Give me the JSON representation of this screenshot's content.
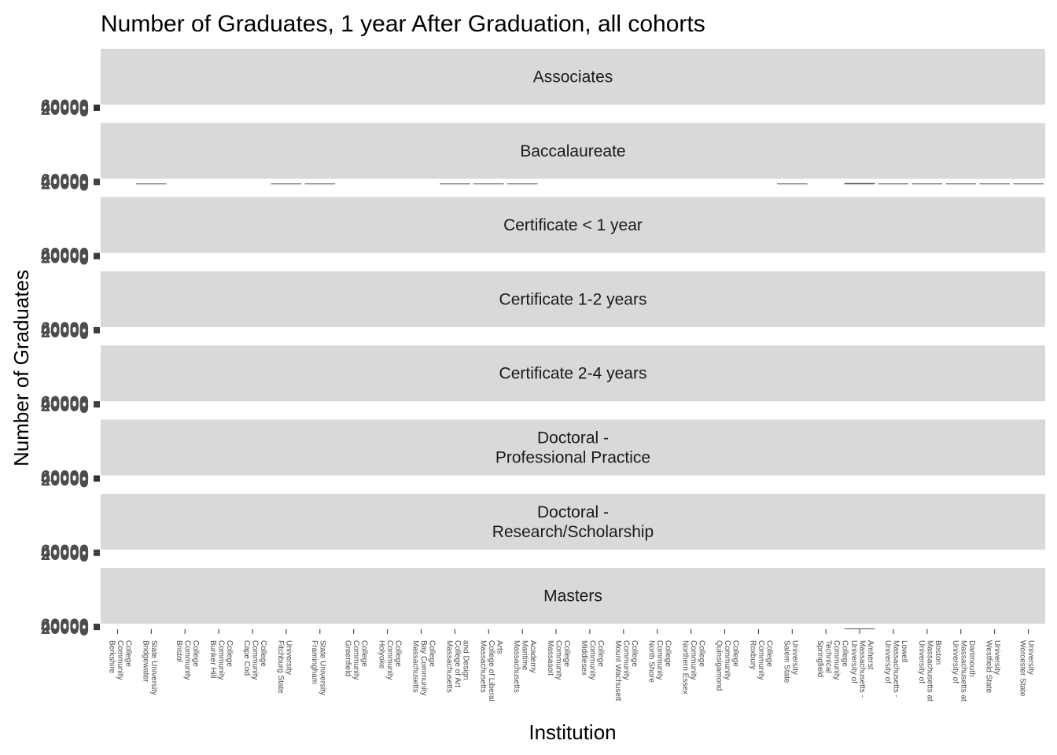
{
  "chart_data": {
    "type": "bar",
    "title": "Number of Graduates, 1 year After Graduation, all cohorts",
    "xlabel": "Institution",
    "ylabel": "Number of Graduates",
    "facet_labels": [
      "Associates",
      "Baccalaureate",
      "Certificate < 1 year",
      "Certificate 1-2 years",
      "Certificate 2-4 years",
      "Doctoral -\nProfessional Practice",
      "Doctoral -\nResearch/Scholarship",
      "Masters"
    ],
    "y_tick_labels": [
      "0",
      "20000",
      "40000",
      "60000"
    ],
    "ylim": [
      0,
      60000
    ],
    "categories": [
      "Berkshire Community College",
      "Bridgewater State University",
      "Bristol Community College",
      "Bunker Hill Community College",
      "Cape Cod Community College",
      "Fitchburg State University",
      "Framingham State University",
      "Greenfield Community College",
      "Holyoke Community College",
      "Massachusetts Bay Community College",
      "Massachusetts College of Art and Design",
      "Massachusetts College of Liberal Arts",
      "Massachusetts Maritime Academy",
      "Massasoit Community College",
      "Middlesex Community College",
      "Mount Wachusett Community College",
      "North Shore Community College",
      "Northern Essex Community College",
      "Quinsigamond Community College",
      "Roxbury Community College",
      "Salem State University",
      "Springfield Technical Community College",
      "University of Massachusetts - Amherst",
      "University of Massachusetts - Lowell",
      "University of Massachusetts at Boston",
      "University of Massachusetts at Dartmouth",
      "Westfield State University",
      "Worcester State University"
    ],
    "x_tick_labels": [
      "Berkshire\nCommunity\nCollege",
      "Bridgewater\nState University",
      "Bristol\nCommunity\nCollege",
      "Bunker Hill\nCommunity\nCollege",
      "Cape Cod\nCommunity\nCollege",
      "Fitchburg State\nUniversity",
      "Framingham\nState University",
      "Greenfield\nCommunity\nCollege",
      "Holyoke\nCommunity\nCollege",
      "Massachusetts\nBay Community\nCollege",
      "Massachusetts\nCollege of Art\nand Design",
      "Massachusetts\nCollege of Liberal\nArts",
      "Massachusetts\nMaritime\nAcademy",
      "Massasoit\nCommunity\nCollege",
      "Middlesex\nCommunity\nCollege",
      "Mount Wachusett\nCommunity\nCollege",
      "North Shore\nCommunity\nCollege",
      "Northern Essex\nCommunity\nCollege",
      "Quinsigamond\nCommunity\nCollege",
      "Roxbury\nCommunity\nCollege",
      "Salem State\nUniversity",
      "Springfield\nTechnical\nCommunity\nCollege",
      "University of\nMassachusetts -\nAmherst",
      "University of\nMassachusetts -\nLowell",
      "University of\nMassachusetts at\nBoston",
      "University of\nMassachusetts at\nDartmouth",
      "Westfield State\nUniversity",
      "Worcester State\nUniversity"
    ],
    "series": [
      {
        "facet": "Associates",
        "values": [
          0,
          0,
          0,
          0,
          0,
          0,
          0,
          0,
          0,
          0,
          0,
          0,
          0,
          0,
          0,
          0,
          0,
          0,
          0,
          0,
          0,
          0,
          0,
          0,
          0,
          0,
          0,
          0
        ]
      },
      {
        "facet": "Baccalaureate",
        "values": [
          0,
          4500,
          0,
          0,
          0,
          3000,
          3500,
          0,
          0,
          0,
          3000,
          3000,
          3000,
          0,
          0,
          0,
          0,
          0,
          0,
          0,
          4500,
          0,
          16000,
          6000,
          5000,
          5500,
          5000,
          3000
        ]
      },
      {
        "facet": "Certificate < 1 year",
        "values": [
          0,
          0,
          0,
          0,
          0,
          0,
          0,
          0,
          0,
          0,
          0,
          0,
          0,
          0,
          0,
          0,
          0,
          0,
          0,
          0,
          0,
          0,
          0,
          0,
          0,
          0,
          0,
          0
        ]
      },
      {
        "facet": "Certificate 1-2 years",
        "values": [
          0,
          0,
          0,
          0,
          0,
          0,
          0,
          0,
          0,
          0,
          0,
          0,
          0,
          0,
          0,
          0,
          0,
          0,
          0,
          0,
          0,
          0,
          0,
          0,
          0,
          0,
          0,
          0
        ]
      },
      {
        "facet": "Certificate 2-4 years",
        "values": [
          0,
          0,
          0,
          0,
          0,
          0,
          0,
          0,
          0,
          0,
          0,
          0,
          0,
          0,
          0,
          0,
          0,
          0,
          0,
          0,
          0,
          0,
          0,
          0,
          0,
          0,
          0,
          0
        ]
      },
      {
        "facet": "Doctoral -\nProfessional Practice",
        "values": [
          0,
          0,
          0,
          0,
          0,
          0,
          0,
          0,
          0,
          0,
          0,
          0,
          0,
          0,
          0,
          0,
          0,
          0,
          0,
          0,
          0,
          0,
          0,
          0,
          0,
          0,
          0,
          0
        ]
      },
      {
        "facet": "Doctoral -\nResearch/Scholarship",
        "values": [
          0,
          0,
          0,
          0,
          0,
          0,
          0,
          0,
          0,
          0,
          0,
          0,
          0,
          0,
          0,
          0,
          0,
          0,
          0,
          0,
          0,
          0,
          0,
          0,
          0,
          0,
          0,
          0
        ]
      },
      {
        "facet": "Masters",
        "values": [
          0,
          0,
          0,
          0,
          0,
          0,
          0,
          0,
          0,
          0,
          0,
          0,
          0,
          0,
          0,
          0,
          0,
          0,
          0,
          0,
          0,
          0,
          1500,
          0,
          0,
          0,
          0,
          0
        ]
      }
    ],
    "grid": false,
    "bar_color": "#595959",
    "strip_color": "#d9d9d9",
    "tick_color": "#333333"
  }
}
